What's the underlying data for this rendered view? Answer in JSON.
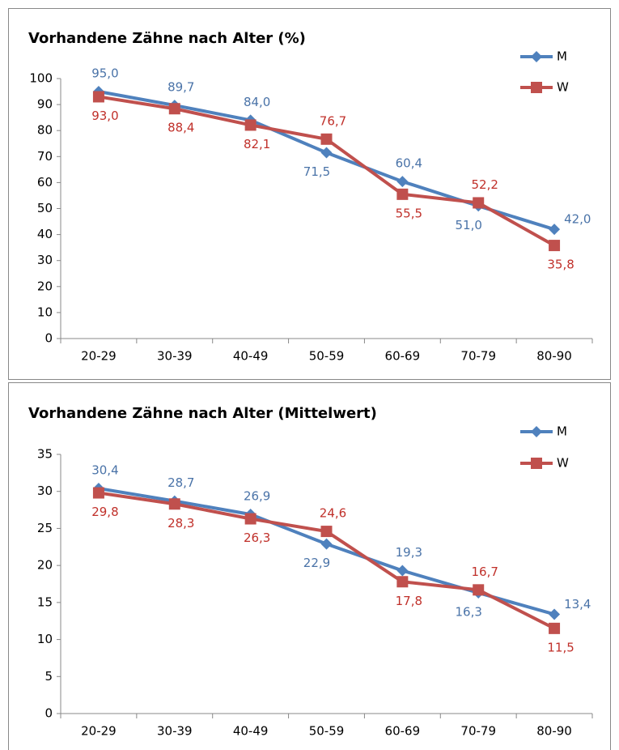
{
  "chart_data": [
    {
      "type": "line",
      "title": "Vorhandene Zähne nach Alter (%)",
      "categories": [
        "20-29",
        "30-39",
        "40-49",
        "50-59",
        "60-69",
        "70-79",
        "80-90"
      ],
      "series": [
        {
          "name": "M",
          "color": "#4f81bd",
          "values": [
            95.0,
            89.7,
            84.0,
            71.5,
            60.4,
            51.0,
            42.0
          ],
          "value_labels": [
            "95,0",
            "89,7",
            "84,0",
            "71,5",
            "60,4",
            "51,0",
            "42,0"
          ]
        },
        {
          "name": "W",
          "color": "#c0504d",
          "values": [
            93.0,
            88.4,
            82.1,
            76.7,
            55.5,
            52.2,
            35.8
          ],
          "value_labels": [
            "93,0",
            "88,4",
            "82,1",
            "76,7",
            "55,5",
            "52,2",
            "35,8"
          ]
        }
      ],
      "ylim": [
        0,
        100
      ],
      "yticks": [
        0,
        10,
        20,
        30,
        40,
        50,
        60,
        70,
        80,
        90,
        100
      ],
      "legend": "upper right"
    },
    {
      "type": "line",
      "title": "Vorhandene Zähne nach Alter (Mittelwert)",
      "categories": [
        "20-29",
        "30-39",
        "40-49",
        "50-59",
        "60-69",
        "70-79",
        "80-90"
      ],
      "series": [
        {
          "name": "M",
          "color": "#4f81bd",
          "values": [
            30.4,
            28.7,
            26.9,
            22.9,
            19.3,
            16.3,
            13.4
          ],
          "value_labels": [
            "30,4",
            "28,7",
            "26,9",
            "22,9",
            "19,3",
            "16,3",
            "13,4"
          ]
        },
        {
          "name": "W",
          "color": "#c0504d",
          "values": [
            29.8,
            28.3,
            26.3,
            24.6,
            17.8,
            16.7,
            11.5
          ],
          "value_labels": [
            "29,8",
            "28,3",
            "26,3",
            "24,6",
            "17,8",
            "16,7",
            "11,5"
          ]
        }
      ],
      "ylim": [
        0,
        35
      ],
      "yticks": [
        0,
        5,
        10,
        15,
        20,
        25,
        30,
        35
      ],
      "legend": "upper right"
    }
  ]
}
